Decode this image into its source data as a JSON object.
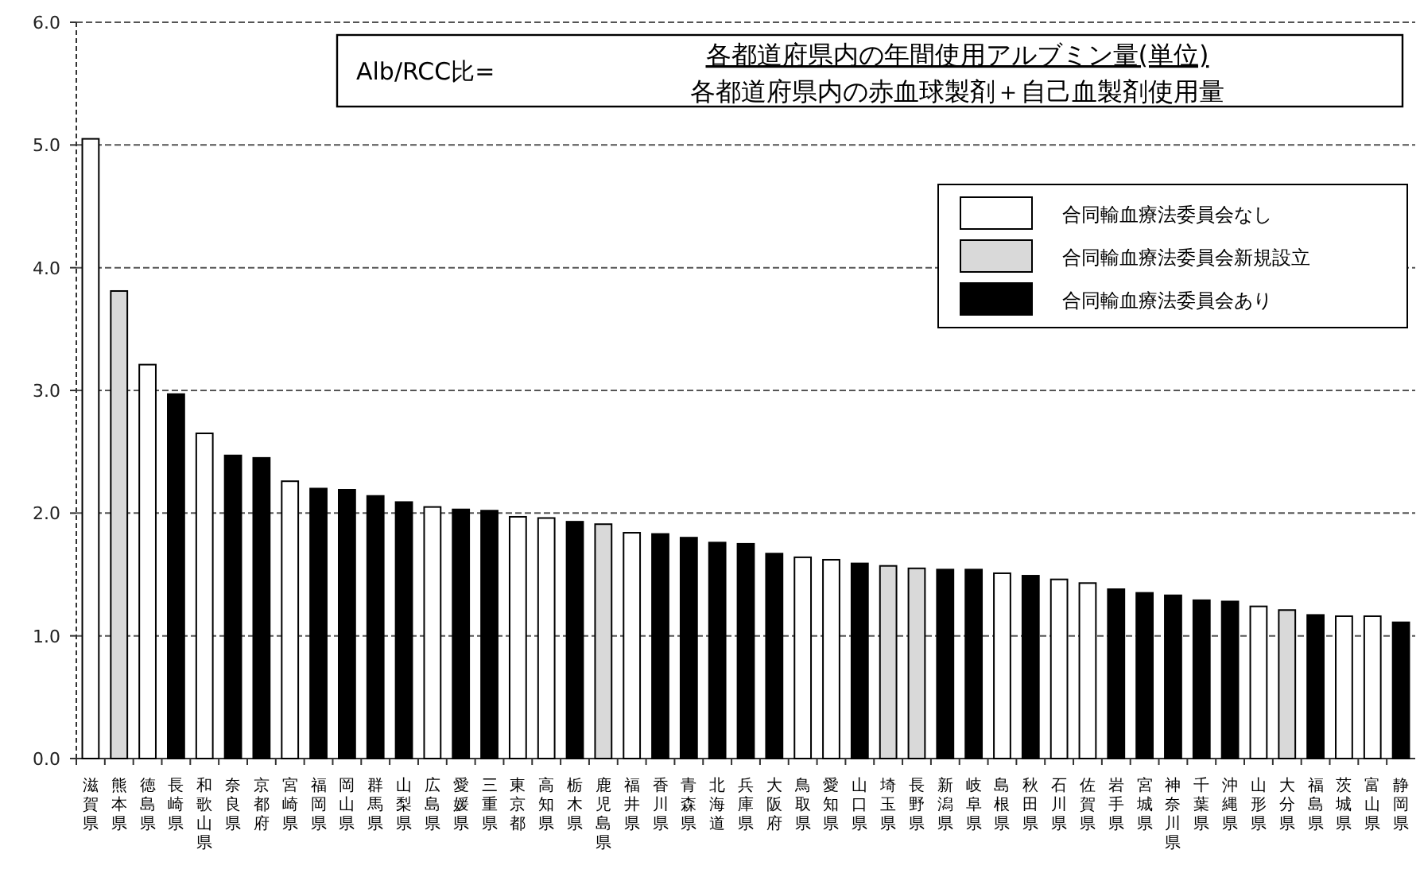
{
  "chart_data": {
    "type": "bar",
    "legend": "top right",
    "grid": "y",
    "annotations": [
      "Alb/RCC比=",
      "各都道府県内の年間使用アルブミン量(単位)",
      "各都道府県内の赤血球製剤＋自己血製剤使用量"
    ],
    "categories": [
      "滋賀県",
      "熊本県",
      "徳島県",
      "長崎県",
      "和歌山県",
      "奈良県",
      "京都府",
      "宮崎県",
      "福岡県",
      "岡山県",
      "群馬県",
      "山梨県",
      "広島県",
      "愛媛県",
      "三重県",
      "東京都",
      "高知県",
      "栃木県",
      "鹿児島県",
      "福井県",
      "香川県",
      "青森県",
      "北海道",
      "兵庫県",
      "大阪府",
      "鳥取県",
      "愛知県",
      "山口県",
      "埼玉県",
      "長野県",
      "新潟県",
      "岐阜県",
      "島根県",
      "秋田県",
      "石川県",
      "佐賀県",
      "岩手県",
      "宮城県",
      "神奈川県",
      "千葉県",
      "沖縄県",
      "山形県",
      "大分県",
      "福島県",
      "茨城県",
      "富山県",
      "静岡県"
    ],
    "ylim": [
      0,
      6
    ],
    "yticks": [
      {
        "value": 0,
        "label": "0.0"
      },
      {
        "value": 1,
        "label": "1.0"
      },
      {
        "value": 2,
        "label": "2.0"
      },
      {
        "value": 3,
        "label": "3.0"
      },
      {
        "value": 4,
        "label": "4.0"
      },
      {
        "value": 5,
        "label": "5.0"
      },
      {
        "value": 6,
        "label": "6.0"
      }
    ],
    "series": [
      {
        "name": "合同輸血療法委員会なし",
        "color": "#ffffff",
        "values": [
          5.05,
          null,
          3.21,
          null,
          2.65,
          null,
          null,
          2.26,
          null,
          null,
          null,
          null,
          2.05,
          null,
          null,
          1.97,
          1.96,
          null,
          null,
          1.84,
          null,
          null,
          null,
          null,
          null,
          1.64,
          1.62,
          null,
          null,
          null,
          null,
          null,
          1.51,
          null,
          1.46,
          1.43,
          null,
          null,
          null,
          null,
          null,
          1.24,
          null,
          null,
          1.16,
          1.16,
          null
        ]
      },
      {
        "name": "合同輸血療法委員会新規設立",
        "color": "#d9d9d9",
        "values": [
          null,
          3.81,
          null,
          null,
          null,
          null,
          null,
          null,
          null,
          null,
          null,
          null,
          null,
          null,
          null,
          null,
          null,
          null,
          1.91,
          null,
          null,
          null,
          null,
          null,
          null,
          null,
          null,
          null,
          1.57,
          1.55,
          null,
          null,
          null,
          null,
          null,
          null,
          null,
          null,
          null,
          null,
          null,
          null,
          1.21,
          null,
          null,
          null,
          null
        ]
      },
      {
        "name": "合同輸血療法委員会あり",
        "color": "#000000",
        "values": [
          null,
          null,
          null,
          2.97,
          null,
          2.47,
          2.45,
          null,
          2.2,
          2.19,
          2.14,
          2.09,
          null,
          2.03,
          2.02,
          null,
          null,
          1.93,
          null,
          null,
          1.83,
          1.8,
          1.76,
          1.75,
          1.67,
          null,
          null,
          1.59,
          null,
          null,
          1.54,
          1.54,
          null,
          1.49,
          null,
          null,
          1.38,
          1.35,
          1.33,
          1.29,
          1.28,
          null,
          null,
          1.17,
          null,
          null,
          1.11
        ]
      }
    ]
  }
}
